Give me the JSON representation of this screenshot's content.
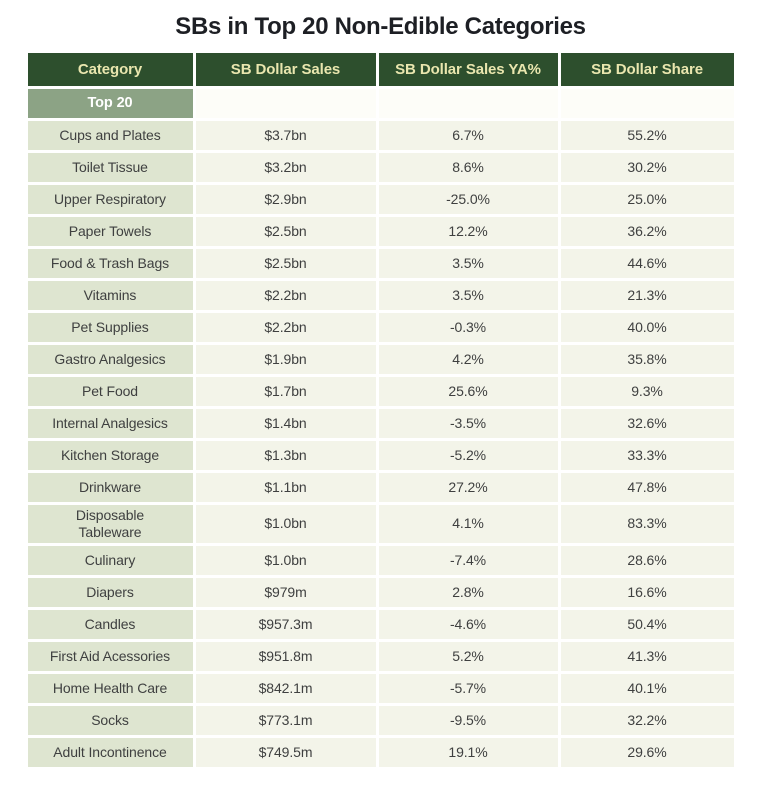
{
  "title": "SBs in Top 20 Non-Edible Categories",
  "colors": {
    "title_text": "#1d1f24",
    "header_bg": "#2d4f2d",
    "header_text": "#e9e6ae",
    "group_bg": "#8ca385",
    "group_text": "#ffffff",
    "group_empty_bg": "#fdfdf8",
    "category_bg": "#dee5d0",
    "value_bg": "#f3f4e9",
    "body_text": "#3f4040"
  },
  "chart_data": {
    "type": "table",
    "title": "SBs in Top 20 Non-Edible Categories",
    "columns": [
      "Category",
      "SB Dollar Sales",
      "SB Dollar Sales YA%",
      "SB Dollar Share"
    ],
    "group_label": "Top 20",
    "rows": [
      [
        "Cups and Plates",
        "$3.7bn",
        "6.7%",
        "55.2%"
      ],
      [
        "Toilet Tissue",
        "$3.2bn",
        "8.6%",
        "30.2%"
      ],
      [
        "Upper Respiratory",
        "$2.9bn",
        "-25.0%",
        "25.0%"
      ],
      [
        "Paper Towels",
        "$2.5bn",
        "12.2%",
        "36.2%"
      ],
      [
        "Food & Trash Bags",
        "$2.5bn",
        "3.5%",
        "44.6%"
      ],
      [
        "Vitamins",
        "$2.2bn",
        "3.5%",
        "21.3%"
      ],
      [
        "Pet Supplies",
        "$2.2bn",
        "-0.3%",
        "40.0%"
      ],
      [
        "Gastro Analgesics",
        "$1.9bn",
        "4.2%",
        "35.8%"
      ],
      [
        "Pet Food",
        "$1.7bn",
        "25.6%",
        "9.3%"
      ],
      [
        "Internal Analgesics",
        "$1.4bn",
        "-3.5%",
        "32.6%"
      ],
      [
        "Kitchen Storage",
        "$1.3bn",
        "-5.2%",
        "33.3%"
      ],
      [
        "Drinkware",
        "$1.1bn",
        "27.2%",
        "47.8%"
      ],
      [
        "Disposable\nTableware",
        "$1.0bn",
        "4.1%",
        "83.3%"
      ],
      [
        "Culinary",
        "$1.0bn",
        "-7.4%",
        "28.6%"
      ],
      [
        "Diapers",
        "$979m",
        "2.8%",
        "16.6%"
      ],
      [
        "Candles",
        "$957.3m",
        "-4.6%",
        "50.4%"
      ],
      [
        "First Aid Acessories",
        "$951.8m",
        "5.2%",
        "41.3%"
      ],
      [
        "Home Health Care",
        "$842.1m",
        "-5.7%",
        "40.1%"
      ],
      [
        "Socks",
        "$773.1m",
        "-9.5%",
        "32.2%"
      ],
      [
        "Adult Incontinence",
        "$749.5m",
        "19.1%",
        "29.6%"
      ]
    ]
  }
}
